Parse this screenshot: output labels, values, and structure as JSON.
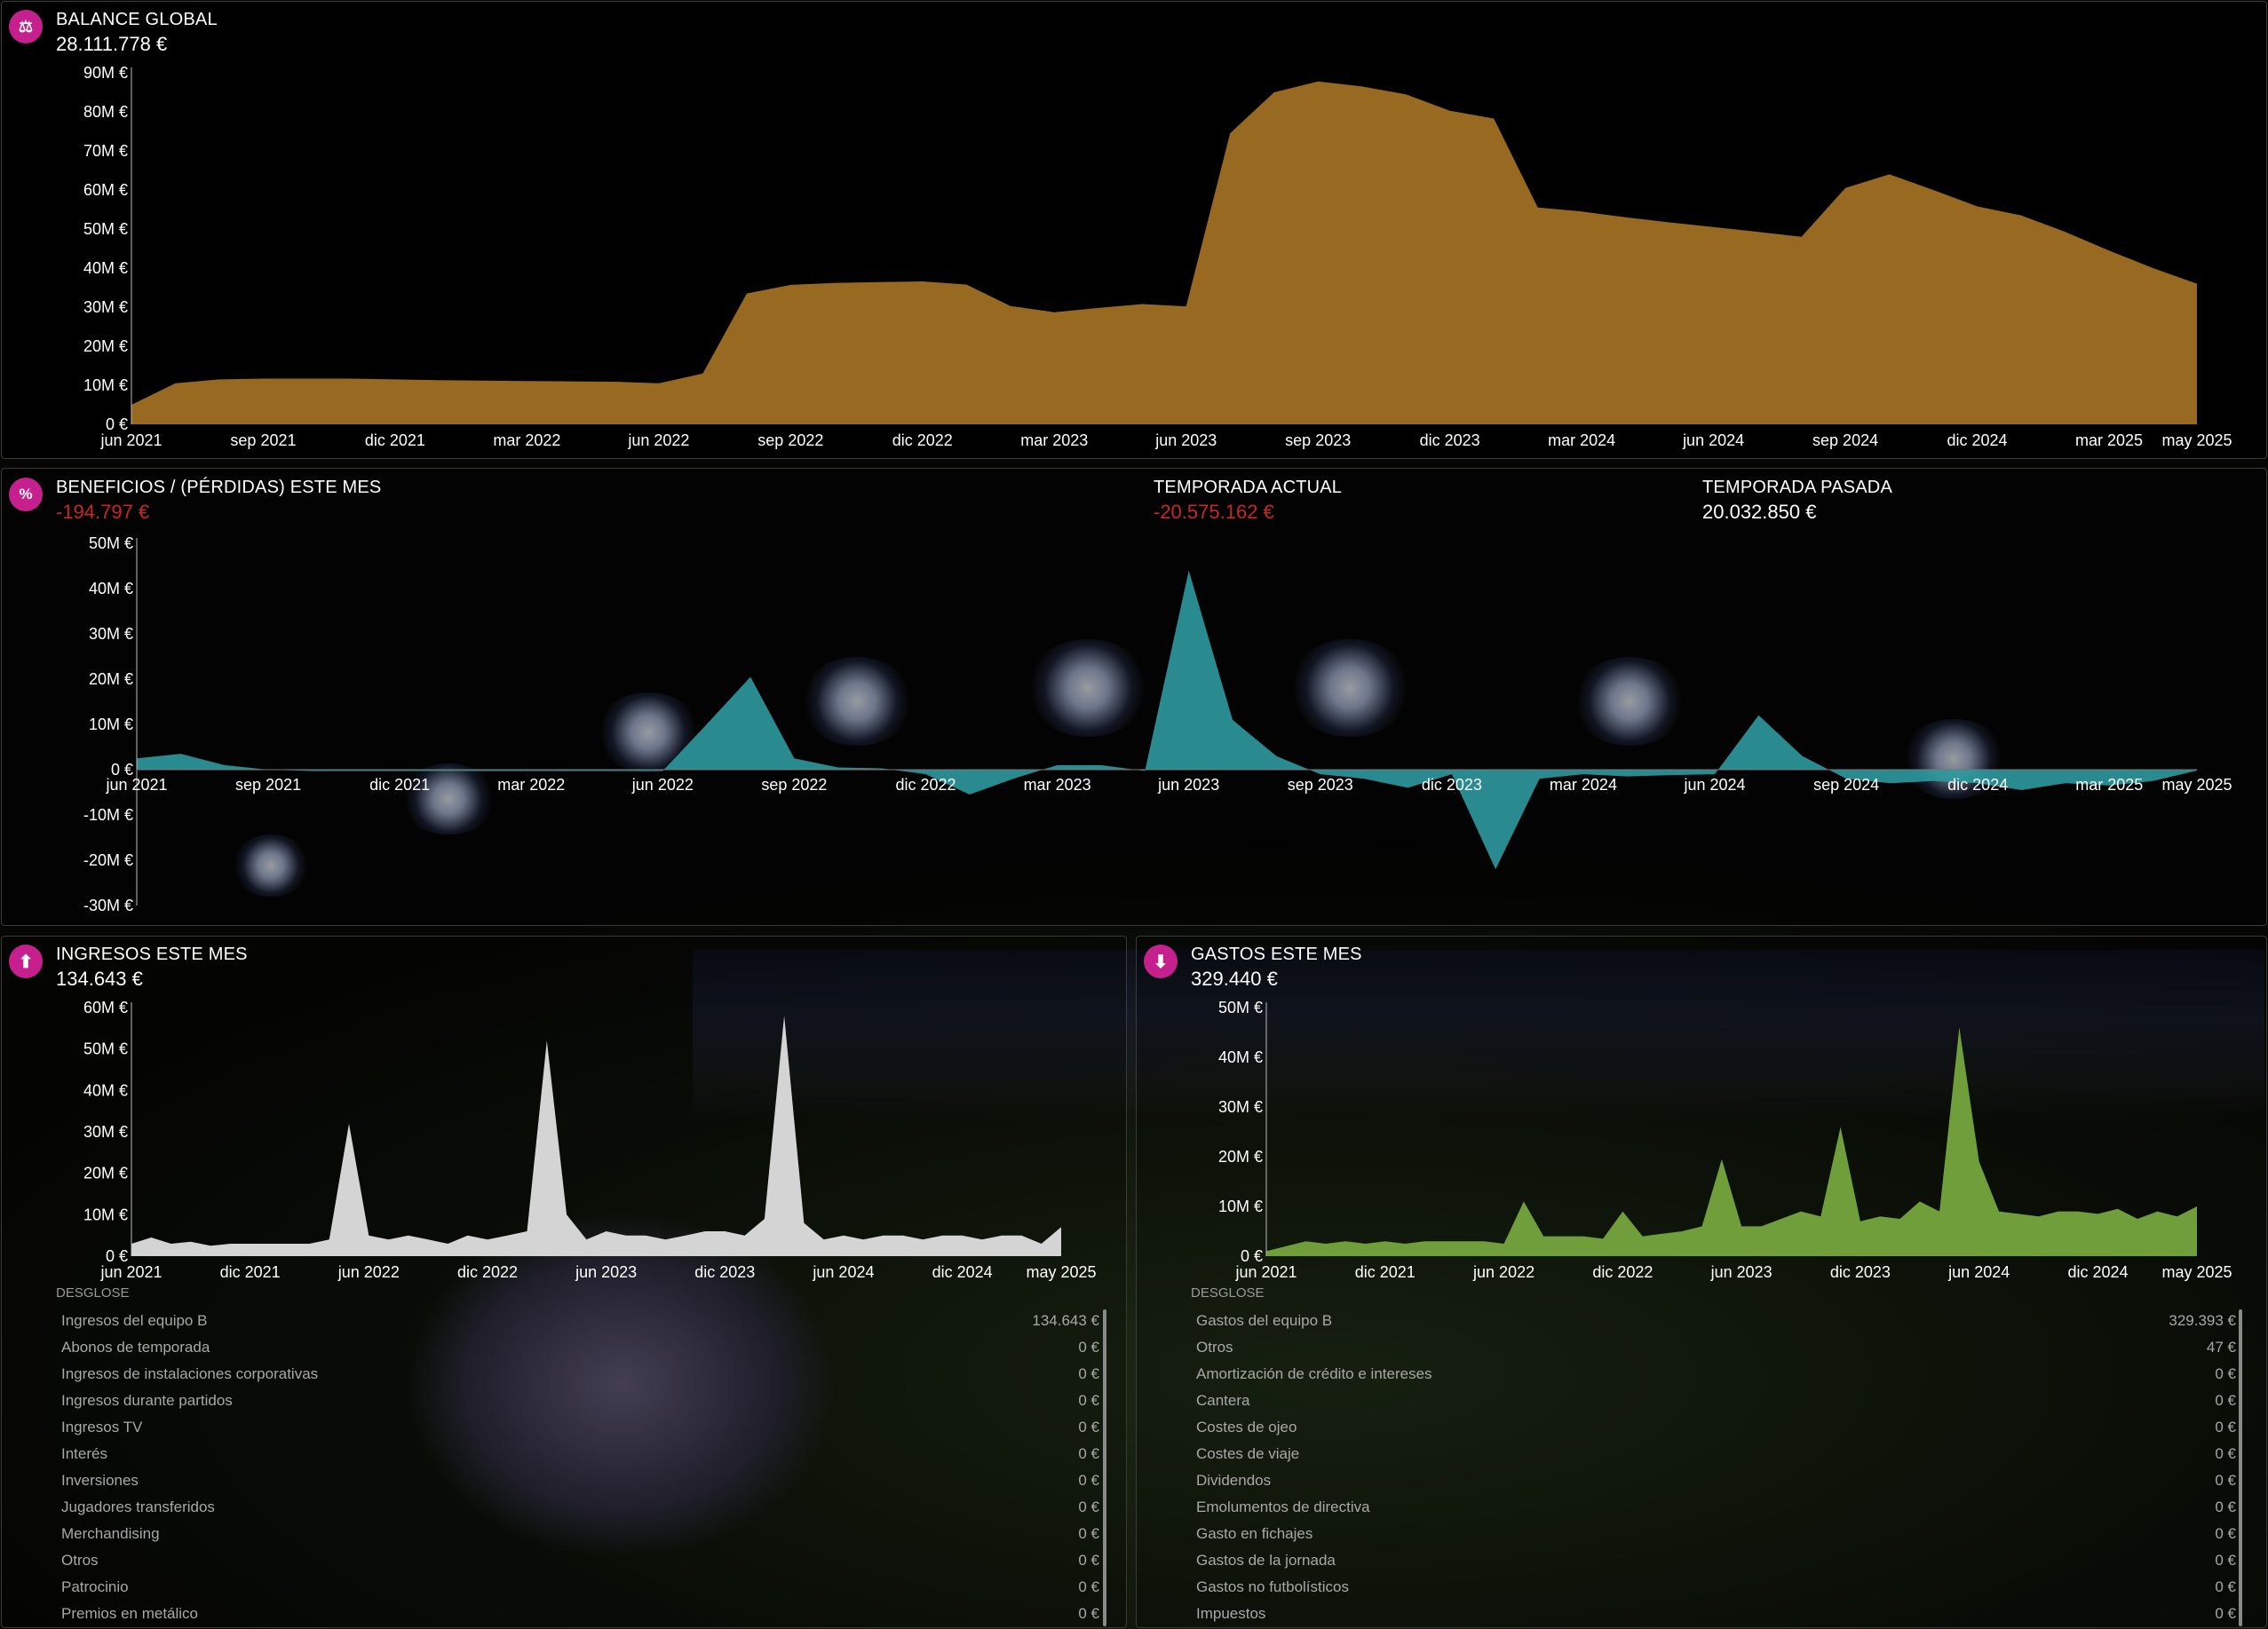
{
  "balance": {
    "title": "BALANCE GLOBAL",
    "value": "28.111.778 €",
    "icon": "scale-icon",
    "chart_data": {
      "type": "area",
      "color": "#976921",
      "y_ticks": [
        "0 €",
        "10M €",
        "20M €",
        "30M €",
        "40M €",
        "50M €",
        "60M €",
        "70M €",
        "80M €",
        "90M €"
      ],
      "x_ticks": [
        "jun 2021",
        "sep 2021",
        "dic 2021",
        "mar 2022",
        "jun 2022",
        "sep 2022",
        "dic 2022",
        "mar 2023",
        "jun 2023",
        "sep 2023",
        "dic 2023",
        "mar 2024",
        "jun 2024",
        "sep 2024",
        "dic 2024",
        "mar 2025",
        "may 2025"
      ],
      "ylim": [
        0,
        90
      ],
      "x": [
        "2021-06",
        "2021-07",
        "2021-08",
        "2021-09",
        "2021-10",
        "2021-11",
        "2021-12",
        "2022-01",
        "2022-02",
        "2022-03",
        "2022-04",
        "2022-05",
        "2022-06",
        "2022-07",
        "2022-08",
        "2022-09",
        "2022-10",
        "2022-11",
        "2022-12",
        "2023-01",
        "2023-02",
        "2023-03",
        "2023-04",
        "2023-05",
        "2023-06",
        "2023-07",
        "2023-08",
        "2023-09",
        "2023-10",
        "2023-11",
        "2023-12",
        "2024-01",
        "2024-02",
        "2024-03",
        "2024-04",
        "2024-05",
        "2024-06",
        "2024-07",
        "2024-08",
        "2024-09",
        "2024-10",
        "2024-11",
        "2024-12",
        "2025-01",
        "2025-02",
        "2025-03",
        "2025-04",
        "2025-05"
      ],
      "values": [
        5,
        10.5,
        11.5,
        11.7,
        11.7,
        11.7,
        11.5,
        11.3,
        11.2,
        11.1,
        11,
        10.9,
        10.5,
        13,
        33.5,
        35.7,
        36.2,
        36.4,
        36.6,
        35.8,
        30.3,
        28.7,
        29.8,
        30.8,
        30.2,
        74.5,
        85,
        87.8,
        86.5,
        84.5,
        80.3,
        78.3,
        55.5,
        54.5,
        53,
        51.7,
        50.5,
        49.3,
        48,
        60.5,
        64,
        60,
        55.8,
        53.5,
        49.3,
        44.5,
        40,
        36
      ],
      "end_values": [
        32.5,
        28.1
      ]
    }
  },
  "profit": {
    "title": "BENEFICIOS / (PÉRDIDAS) ESTE MES",
    "value": "-194.797 €",
    "icon": "percent-icon",
    "current_season_label": "TEMPORADA ACTUAL",
    "current_season_value": "-20.575.162 €",
    "last_season_label": "TEMPORADA PASADA",
    "last_season_value": "20.032.850 €",
    "chart_data": {
      "type": "area",
      "color": "#2e9aa0",
      "y_ticks": [
        "-30M €",
        "-20M €",
        "-10M €",
        "0 €",
        "10M €",
        "20M €",
        "30M €",
        "40M €",
        "50M €"
      ],
      "x_ticks": [
        "jun 2021",
        "sep 2021",
        "dic 2021",
        "mar 2022",
        "jun 2022",
        "sep 2022",
        "dic 2022",
        "mar 2023",
        "jun 2023",
        "sep 2023",
        "dic 2023",
        "mar 2024",
        "jun 2024",
        "sep 2024",
        "dic 2024",
        "mar 2025",
        "may 2025"
      ],
      "ylim": [
        -30,
        50
      ],
      "x": [
        "2021-06",
        "2021-07",
        "2021-08",
        "2021-09",
        "2021-10",
        "2021-11",
        "2021-12",
        "2022-01",
        "2022-02",
        "2022-03",
        "2022-04",
        "2022-05",
        "2022-06",
        "2022-07",
        "2022-08",
        "2022-09",
        "2022-10",
        "2022-11",
        "2022-12",
        "2023-01",
        "2023-02",
        "2023-03",
        "2023-04",
        "2023-05",
        "2023-06",
        "2023-07",
        "2023-08",
        "2023-09",
        "2023-10",
        "2023-11",
        "2023-12",
        "2024-01",
        "2024-02",
        "2024-03",
        "2024-04",
        "2024-05",
        "2024-06",
        "2024-07",
        "2024-08",
        "2024-09",
        "2024-10",
        "2024-11",
        "2024-12",
        "2025-01",
        "2025-02",
        "2025-03",
        "2025-04",
        "2025-05"
      ],
      "values": [
        2.5,
        3.5,
        1,
        0,
        -0.3,
        -0.3,
        -0.3,
        -0.3,
        -0.3,
        -0.3,
        -0.3,
        -0.3,
        -0.3,
        10,
        20.5,
        2.5,
        0.5,
        0.3,
        -1,
        -5.5,
        -2,
        1,
        1,
        -0.3,
        44,
        11,
        3,
        -1,
        -2,
        -4,
        -1,
        -22,
        -2,
        -1,
        -1.5,
        -1.2,
        -1,
        12,
        3,
        -2,
        -3,
        -2.5,
        -3,
        -4.5,
        -3,
        -3.5,
        -2.5,
        -0.2
      ]
    }
  },
  "income": {
    "title": "INGRESOS ESTE MES",
    "value": "134.643 €",
    "icon": "arrow-up-icon",
    "chart_data": {
      "type": "area",
      "color": "#d4d4d4",
      "y_ticks": [
        "0 €",
        "10M €",
        "20M €",
        "30M €",
        "40M €",
        "50M €",
        "60M €"
      ],
      "x_ticks": [
        "jun 2021",
        "dic 2021",
        "jun 2022",
        "dic 2022",
        "jun 2023",
        "dic 2023",
        "jun 2024",
        "dic 2024",
        "may 2025"
      ],
      "ylim": [
        0,
        60
      ],
      "x": [
        "2021-06",
        "2021-07",
        "2021-08",
        "2021-09",
        "2021-10",
        "2021-11",
        "2021-12",
        "2022-01",
        "2022-02",
        "2022-03",
        "2022-04",
        "2022-05",
        "2022-06",
        "2022-07",
        "2022-08",
        "2022-09",
        "2022-10",
        "2022-11",
        "2022-12",
        "2023-01",
        "2023-02",
        "2023-03",
        "2023-04",
        "2023-05",
        "2023-06",
        "2023-07",
        "2023-08",
        "2023-09",
        "2023-10",
        "2023-11",
        "2023-12",
        "2024-01",
        "2024-02",
        "2024-03",
        "2024-04",
        "2024-05",
        "2024-06",
        "2024-07",
        "2024-08",
        "2024-09",
        "2024-10",
        "2024-11",
        "2024-12",
        "2025-01",
        "2025-02",
        "2025-03",
        "2025-04",
        "2025-05"
      ],
      "values": [
        3,
        4.5,
        3,
        3.5,
        2.5,
        3,
        3,
        3,
        3,
        3,
        4,
        32,
        5,
        4,
        5,
        4,
        3,
        5,
        4,
        5,
        6,
        52,
        10,
        4,
        6,
        5,
        5,
        4,
        5,
        6,
        6,
        5,
        9,
        58,
        8,
        4,
        5,
        4,
        5,
        5,
        4,
        5,
        5,
        4,
        5,
        5,
        3,
        7
      ]
    },
    "breakdown_label": "DESGLOSE",
    "breakdown": [
      {
        "label": "Ingresos del equipo B",
        "value": "134.643 €"
      },
      {
        "label": "Abonos de temporada",
        "value": "0 €"
      },
      {
        "label": "Ingresos de instalaciones corporativas",
        "value": "0 €"
      },
      {
        "label": "Ingresos durante partidos",
        "value": "0 €"
      },
      {
        "label": "Ingresos TV",
        "value": "0 €"
      },
      {
        "label": "Interés",
        "value": "0 €"
      },
      {
        "label": "Inversiones",
        "value": "0 €"
      },
      {
        "label": "Jugadores transferidos",
        "value": "0 €"
      },
      {
        "label": "Merchandising",
        "value": "0 €"
      },
      {
        "label": "Otros",
        "value": "0 €"
      },
      {
        "label": "Patrocinio",
        "value": "0 €"
      },
      {
        "label": "Premios en metálico",
        "value": "0 €"
      }
    ]
  },
  "expenses": {
    "title": "GASTOS ESTE MES",
    "value": "329.440 €",
    "icon": "arrow-down-icon",
    "chart_data": {
      "type": "area",
      "color": "#6f9e3a",
      "y_ticks": [
        "0 €",
        "10M €",
        "20M €",
        "30M €",
        "40M €",
        "50M €"
      ],
      "x_ticks": [
        "jun 2021",
        "dic 2021",
        "jun 2022",
        "dic 2022",
        "jun 2023",
        "dic 2023",
        "jun 2024",
        "dic 2024",
        "may 2025"
      ],
      "ylim": [
        0,
        50
      ],
      "x": [
        "2021-06",
        "2021-07",
        "2021-08",
        "2021-09",
        "2021-10",
        "2021-11",
        "2021-12",
        "2022-01",
        "2022-02",
        "2022-03",
        "2022-04",
        "2022-05",
        "2022-06",
        "2022-07",
        "2022-08",
        "2022-09",
        "2022-10",
        "2022-11",
        "2022-12",
        "2023-01",
        "2023-02",
        "2023-03",
        "2023-04",
        "2023-05",
        "2023-06",
        "2023-07",
        "2023-08",
        "2023-09",
        "2023-10",
        "2023-11",
        "2023-12",
        "2024-01",
        "2024-02",
        "2024-03",
        "2024-04",
        "2024-05",
        "2024-06",
        "2024-07",
        "2024-08",
        "2024-09",
        "2024-10",
        "2024-11",
        "2024-12",
        "2025-01",
        "2025-02",
        "2025-03",
        "2025-04",
        "2025-05"
      ],
      "values": [
        1,
        2,
        3,
        2.5,
        3,
        2.5,
        3,
        2.5,
        3,
        3,
        3,
        3,
        2.5,
        11,
        4,
        4,
        4,
        3.5,
        9,
        4,
        4.5,
        5,
        6,
        19.5,
        6,
        6,
        7.5,
        9,
        8,
        26,
        7,
        8,
        7.5,
        11,
        9,
        46,
        19,
        9,
        8.5,
        8,
        9,
        9,
        8.5,
        9.5,
        7.5,
        9,
        8,
        10
      ]
    },
    "breakdown_label": "DESGLOSE",
    "breakdown": [
      {
        "label": "Gastos del equipo B",
        "value": "329.393 €"
      },
      {
        "label": "Otros",
        "value": "47 €"
      },
      {
        "label": "Amortización de crédito e intereses",
        "value": "0 €"
      },
      {
        "label": "Cantera",
        "value": "0 €"
      },
      {
        "label": "Costes de ojeo",
        "value": "0 €"
      },
      {
        "label": "Costes de viaje",
        "value": "0 €"
      },
      {
        "label": "Dividendos",
        "value": "0 €"
      },
      {
        "label": "Emolumentos de directiva",
        "value": "0 €"
      },
      {
        "label": "Gasto en fichajes",
        "value": "0 €"
      },
      {
        "label": "Gastos de la jornada",
        "value": "0 €"
      },
      {
        "label": "Gastos no futbolísticos",
        "value": "0 €"
      },
      {
        "label": "Impuestos",
        "value": "0 €"
      }
    ]
  }
}
